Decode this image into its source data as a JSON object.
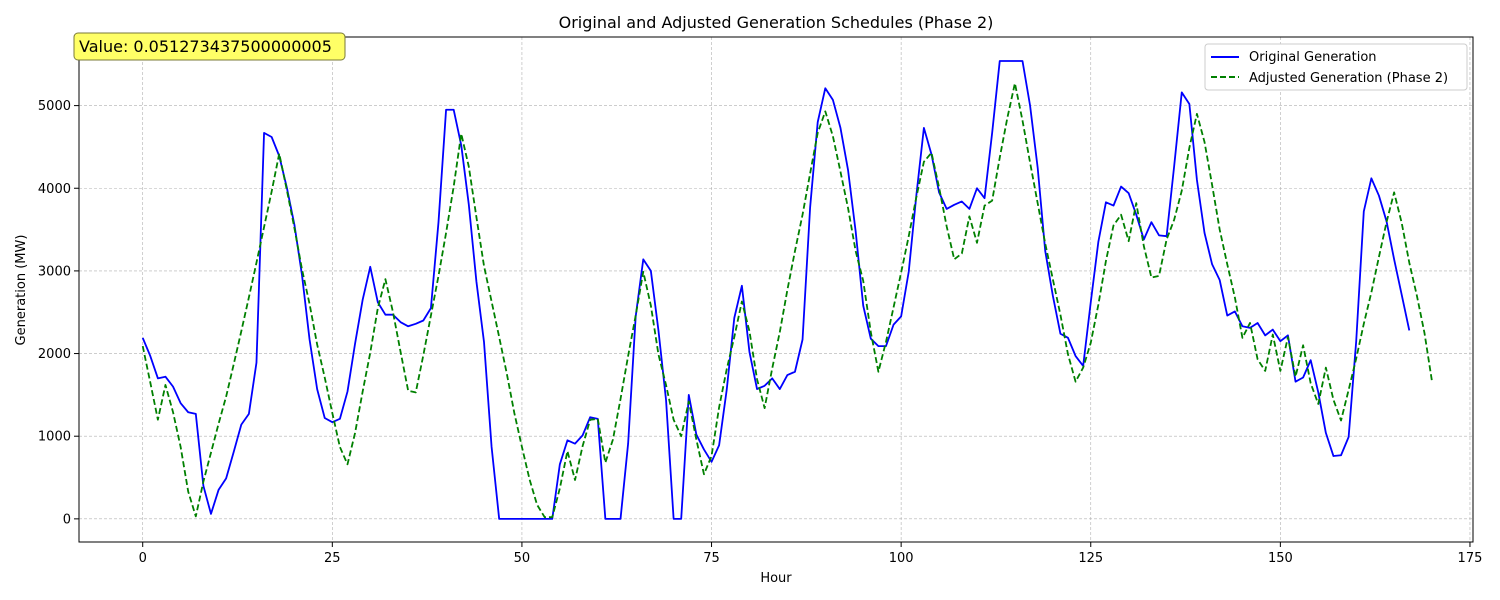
{
  "chart_data": {
    "type": "line",
    "title": "Original and Adjusted Generation Schedules (Phase 2)",
    "xlabel": "Hour",
    "ylabel": "Generation (MW)",
    "xlim": [
      -8.4,
      175.4
    ],
    "ylim": [
      -280,
      5830
    ],
    "xticks": [
      0,
      25,
      50,
      75,
      100,
      125,
      150,
      175
    ],
    "yticks": [
      0,
      1000,
      2000,
      3000,
      4000,
      5000
    ],
    "grid": true,
    "legend_position": "top-right",
    "annotation": "Value: 0.051273437500000005",
    "series": [
      {
        "name": "Original Generation",
        "color": "#0000ff",
        "dash": "solid",
        "values": [
          2190,
          1970,
          1700,
          1720,
          1600,
          1400,
          1290,
          1270,
          400,
          60,
          350,
          490,
          810,
          1140,
          1270,
          1890,
          4670,
          4620,
          4390,
          4010,
          3560,
          2950,
          2170,
          1570,
          1220,
          1170,
          1210,
          1540,
          2120,
          2650,
          3050,
          2620,
          2470,
          2470,
          2380,
          2330,
          2360,
          2400,
          2550,
          3590,
          4950,
          4950,
          4520,
          3800,
          2870,
          2140,
          870,
          0,
          0,
          0,
          0,
          0,
          0,
          0,
          0,
          660,
          950,
          910,
          1010,
          1230,
          1210,
          0,
          0,
          0,
          910,
          2450,
          3140,
          3000,
          2280,
          1440,
          0,
          0,
          1500,
          1020,
          840,
          690,
          890,
          1560,
          2430,
          2820,
          2020,
          1570,
          1610,
          1700,
          1570,
          1740,
          1780,
          2170,
          3770,
          4800,
          5210,
          5070,
          4730,
          4220,
          3480,
          2580,
          2180,
          2090,
          2090,
          2350,
          2450,
          2990,
          3910,
          4730,
          4410,
          3950,
          3750,
          3800,
          3840,
          3750,
          4000,
          3880,
          4670,
          5540,
          5540,
          5540,
          5540,
          5000,
          4250,
          3240,
          2700,
          2240,
          2190,
          1970,
          1850,
          2620,
          3350,
          3830,
          3790,
          4020,
          3940,
          3680,
          3380,
          3590,
          3430,
          3420,
          4270,
          5160,
          5020,
          4100,
          3460,
          3080,
          2890,
          2460,
          2510,
          2330,
          2310,
          2370,
          2220,
          2290,
          2150,
          2220,
          1660,
          1710,
          1920,
          1530,
          1040,
          760,
          770,
          990,
          2150,
          3720,
          4120,
          3910,
          3600,
          3140,
          2710,
          2280
        ]
      },
      {
        "name": "Adjusted Generation (Phase 2)",
        "color": "#008000",
        "dash": "dashed",
        "values": [
          2090,
          1650,
          1200,
          1620,
          1290,
          870,
          330,
          30,
          450,
          800,
          1150,
          1480,
          1870,
          2270,
          2680,
          3100,
          3530,
          3960,
          4420,
          3980,
          3520,
          3020,
          2600,
          2110,
          1710,
          1280,
          870,
          660,
          1040,
          1540,
          2010,
          2550,
          2900,
          2500,
          2020,
          1550,
          1530,
          1980,
          2460,
          2940,
          3460,
          4020,
          4660,
          4260,
          3650,
          3060,
          2630,
          2200,
          1760,
          1280,
          870,
          480,
          170,
          20,
          20,
          370,
          820,
          470,
          880,
          1200,
          1210,
          680,
          960,
          1450,
          1970,
          2460,
          2990,
          2580,
          1990,
          1620,
          1200,
          1000,
          1420,
          960,
          540,
          760,
          1350,
          1810,
          2200,
          2630,
          2270,
          1690,
          1340,
          1820,
          2260,
          2770,
          3240,
          3680,
          4180,
          4670,
          4930,
          4630,
          4200,
          3760,
          3240,
          2880,
          2260,
          1780,
          2140,
          2560,
          2980,
          3420,
          3890,
          4320,
          4430,
          4010,
          3540,
          3140,
          3210,
          3660,
          3340,
          3790,
          3850,
          4370,
          4850,
          5270,
          4820,
          4310,
          3820,
          3330,
          2900,
          2470,
          1990,
          1660,
          1830,
          2130,
          2590,
          3120,
          3550,
          3680,
          3360,
          3820,
          3300,
          2920,
          2940,
          3380,
          3620,
          3970,
          4490,
          4900,
          4560,
          4040,
          3500,
          3080,
          2680,
          2190,
          2370,
          1930,
          1790,
          2230,
          1790,
          2200,
          1720,
          2100,
          1640,
          1390,
          1830,
          1440,
          1190,
          1560,
          1940,
          2360,
          2740,
          3170,
          3590,
          3950,
          3580,
          3100,
          2700,
          2250,
          1660
        ]
      }
    ]
  }
}
